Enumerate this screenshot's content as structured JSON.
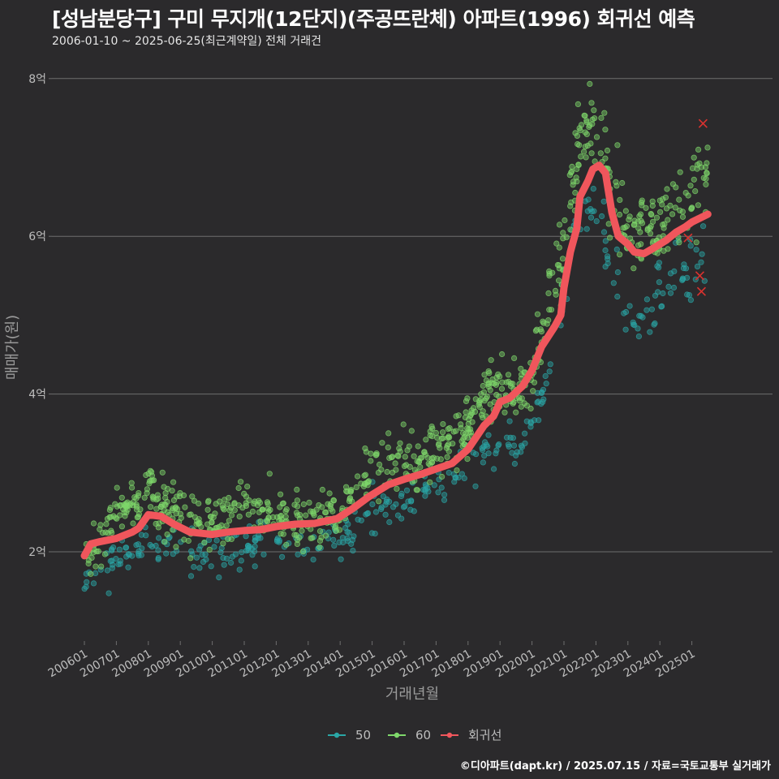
{
  "header": {
    "title": "[성남분당구] 구미 무지개(12단지)(주공뜨란체) 아파트(1996) 회귀선 예측",
    "subtitle": "2006-01-10 ~ 2025-06-25(최근계약일) 전체 거래건"
  },
  "footer": {
    "caption": "©디아파트(dapt.kr) / 2025.07.15 / 자료=국토교통부 실거래가"
  },
  "colors": {
    "background": "#2b2a2c",
    "grid": "#6e6e6e",
    "series_50": "#2aa6a6",
    "series_60": "#7fd86b",
    "regression": "#f0565c",
    "outlier": "#d9322f"
  },
  "chart_data": {
    "type": "scatter",
    "xlabel": "거래년월",
    "ylabel": "매매가(원)",
    "ylim": [
      0.95,
      8.25
    ],
    "y_ticks": [
      {
        "value": 2,
        "label": "2억"
      },
      {
        "value": 4,
        "label": "4억"
      },
      {
        "value": 6,
        "label": "6억"
      },
      {
        "value": 8,
        "label": "8억"
      }
    ],
    "x_range": [
      2006.0,
      2025.6
    ],
    "x_ticks": [
      "200601",
      "200701",
      "200801",
      "200901",
      "201001",
      "201101",
      "201201",
      "201301",
      "201401",
      "201501",
      "201601",
      "201701",
      "201801",
      "201901",
      "202001",
      "202101",
      "202201",
      "202301",
      "202401",
      "202501"
    ],
    "legend": {
      "position": "bottom",
      "items": [
        "50",
        "60",
        "회귀선"
      ]
    },
    "series": [
      {
        "name": "50",
        "trend": [
          [
            2006.0,
            1.6
          ],
          [
            2006.5,
            1.75
          ],
          [
            2007.0,
            1.95
          ],
          [
            2008.0,
            2.05
          ],
          [
            2009.0,
            2.0
          ],
          [
            2010.0,
            1.95
          ],
          [
            2011.0,
            2.05
          ],
          [
            2012.0,
            2.1
          ],
          [
            2013.0,
            2.05
          ],
          [
            2014.0,
            2.15
          ],
          [
            2014.5,
            2.3
          ],
          [
            2015.0,
            2.5
          ],
          [
            2016.0,
            2.6
          ],
          [
            2017.0,
            2.85
          ],
          [
            2017.5,
            2.95
          ],
          [
            2018.0,
            3.2
          ],
          [
            2019.0,
            3.45
          ],
          [
            2019.6,
            3.3
          ],
          [
            2020.0,
            3.6
          ],
          [
            2020.5,
            4.2
          ],
          [
            2020.75,
            4.7
          ],
          [
            2021.0,
            5.4
          ],
          [
            2021.5,
            6.3
          ],
          [
            2022.0,
            6.3
          ],
          [
            2022.5,
            5.5
          ],
          [
            2023.0,
            5.0
          ],
          [
            2023.5,
            5.0
          ],
          [
            2024.0,
            5.3
          ],
          [
            2024.5,
            5.5
          ],
          [
            2025.0,
            5.6
          ],
          [
            2025.5,
            5.85
          ]
        ],
        "count": 360,
        "spread": 0.13
      },
      {
        "name": "60",
        "trend": [
          [
            2006.0,
            2.0
          ],
          [
            2006.5,
            2.1
          ],
          [
            2007.0,
            2.5
          ],
          [
            2008.0,
            2.75
          ],
          [
            2008.5,
            2.6
          ],
          [
            2009.0,
            2.45
          ],
          [
            2010.0,
            2.4
          ],
          [
            2011.0,
            2.5
          ],
          [
            2012.0,
            2.45
          ],
          [
            2013.0,
            2.35
          ],
          [
            2014.0,
            2.5
          ],
          [
            2014.5,
            2.8
          ],
          [
            2015.0,
            3.05
          ],
          [
            2016.0,
            3.2
          ],
          [
            2016.5,
            3.1
          ],
          [
            2017.0,
            3.3
          ],
          [
            2017.5,
            3.4
          ],
          [
            2018.0,
            3.6
          ],
          [
            2018.5,
            3.9
          ],
          [
            2019.0,
            4.1
          ],
          [
            2019.5,
            4.0
          ],
          [
            2020.0,
            4.3
          ],
          [
            2020.5,
            5.0
          ],
          [
            2021.0,
            6.0
          ],
          [
            2021.5,
            7.1
          ],
          [
            2021.9,
            7.6
          ],
          [
            2022.2,
            7.3
          ],
          [
            2022.5,
            6.6
          ],
          [
            2023.0,
            6.0
          ],
          [
            2023.5,
            6.1
          ],
          [
            2024.0,
            6.25
          ],
          [
            2024.5,
            6.4
          ],
          [
            2025.0,
            6.5
          ],
          [
            2025.5,
            6.8
          ]
        ],
        "count": 820,
        "spread": 0.17
      },
      {
        "name": "회귀선",
        "type": "line",
        "points": [
          [
            2006.0,
            1.95
          ],
          [
            2006.2,
            2.1
          ],
          [
            2006.5,
            2.13
          ],
          [
            2007.0,
            2.17
          ],
          [
            2007.5,
            2.25
          ],
          [
            2007.7,
            2.3
          ],
          [
            2008.0,
            2.47
          ],
          [
            2008.4,
            2.45
          ],
          [
            2008.8,
            2.35
          ],
          [
            2009.3,
            2.25
          ],
          [
            2010.0,
            2.22
          ],
          [
            2010.5,
            2.25
          ],
          [
            2011.0,
            2.27
          ],
          [
            2011.5,
            2.28
          ],
          [
            2012.0,
            2.32
          ],
          [
            2012.6,
            2.35
          ],
          [
            2013.2,
            2.36
          ],
          [
            2013.9,
            2.42
          ],
          [
            2014.4,
            2.55
          ],
          [
            2014.9,
            2.7
          ],
          [
            2015.5,
            2.85
          ],
          [
            2016.0,
            2.92
          ],
          [
            2016.5,
            2.98
          ],
          [
            2017.0,
            3.05
          ],
          [
            2017.5,
            3.12
          ],
          [
            2018.0,
            3.3
          ],
          [
            2018.5,
            3.6
          ],
          [
            2018.8,
            3.72
          ],
          [
            2019.0,
            3.9
          ],
          [
            2019.3,
            3.95
          ],
          [
            2019.7,
            4.1
          ],
          [
            2020.0,
            4.3
          ],
          [
            2020.3,
            4.6
          ],
          [
            2020.7,
            4.85
          ],
          [
            2020.9,
            5.0
          ],
          [
            2021.0,
            5.35
          ],
          [
            2021.2,
            5.8
          ],
          [
            2021.4,
            6.1
          ],
          [
            2021.5,
            6.5
          ],
          [
            2021.75,
            6.7
          ],
          [
            2021.9,
            6.85
          ],
          [
            2022.1,
            6.9
          ],
          [
            2022.3,
            6.8
          ],
          [
            2022.5,
            6.3
          ],
          [
            2022.7,
            6.0
          ],
          [
            2023.0,
            5.9
          ],
          [
            2023.2,
            5.8
          ],
          [
            2023.5,
            5.78
          ],
          [
            2023.8,
            5.85
          ],
          [
            2024.2,
            5.95
          ],
          [
            2024.5,
            6.05
          ],
          [
            2024.8,
            6.12
          ],
          [
            2025.0,
            6.18
          ],
          [
            2025.5,
            6.28
          ]
        ]
      }
    ],
    "highlighted_points": [
      {
        "x": 2025.35,
        "y": 7.43
      },
      {
        "x": 2024.88,
        "y": 5.98
      },
      {
        "x": 2025.25,
        "y": 5.5
      },
      {
        "x": 2025.3,
        "y": 5.3
      }
    ]
  }
}
